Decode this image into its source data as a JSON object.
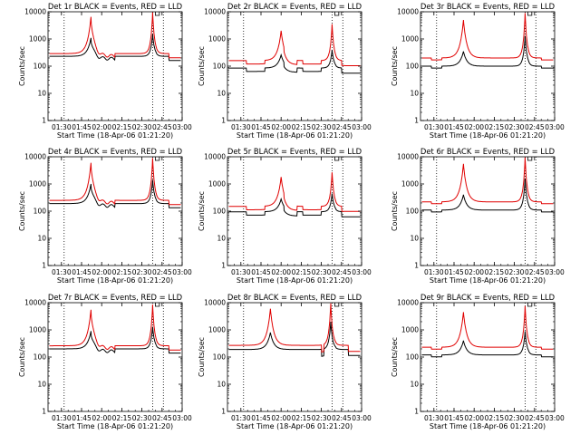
{
  "chart_data": [
    {
      "type": "line",
      "title": "Det 1r BLACK = Events, RED = LLD",
      "xlabel": "Start Time (18-Apr-06 01:21:20)",
      "ylabel": "Counts/sec",
      "ylim": [
        1,
        10000
      ],
      "log_y": true,
      "x_ticks": [
        "01:30",
        "01:45",
        "02:00",
        "02:15",
        "02:30",
        "02:45",
        "03:00"
      ],
      "y_ticks": [
        "1",
        "10",
        "100",
        "1000",
        "10000"
      ],
      "vlines": [
        "01:32",
        "02:38",
        "02:46"
      ],
      "series": [
        {
          "name": "Events",
          "color": "#000000",
          "profile": "A",
          "base": 230,
          "peak1": 1100,
          "peak2": 1500
        },
        {
          "name": "LLD",
          "color": "#e00000",
          "profile": "A",
          "base": 290,
          "peak1": 6500,
          "peak2": 9500
        }
      ]
    },
    {
      "type": "line",
      "title": "Det 2r BLACK = Events, RED = LLD",
      "xlabel": "Start Time (18-Apr-06 01:21:20)",
      "ylabel": "Counts/sec",
      "ylim": [
        1,
        10000
      ],
      "log_y": true,
      "x_ticks": [
        "01:30",
        "01:45",
        "02:00",
        "02:15",
        "02:30",
        "02:45",
        "03:00"
      ],
      "y_ticks": [
        "1",
        "10",
        "100",
        "1000",
        "10000"
      ],
      "vlines": [
        "01:32",
        "02:38",
        "02:46"
      ],
      "series": [
        {
          "name": "Events",
          "color": "#000000",
          "profile": "B",
          "base": 85,
          "peak1": 260,
          "peak2": 400
        },
        {
          "name": "LLD",
          "color": "#e00000",
          "profile": "B",
          "base": 160,
          "peak1": 2000,
          "peak2": 3500
        }
      ]
    },
    {
      "type": "line",
      "title": "Det 3r BLACK = Events, RED = LLD",
      "xlabel": "Start Time (18-Apr-06 01:21:20)",
      "ylabel": "Counts/sec",
      "ylim": [
        1,
        10000
      ],
      "log_y": true,
      "x_ticks": [
        "01:30",
        "01:45",
        "02:00",
        "02:15",
        "02:30",
        "02:45",
        "03:00"
      ],
      "y_ticks": [
        "1",
        "10",
        "100",
        "1000",
        "10000"
      ],
      "vlines": [
        "01:32",
        "02:38",
        "02:46"
      ],
      "series": [
        {
          "name": "Events",
          "color": "#000000",
          "profile": "C",
          "base": 100,
          "peak1": 350,
          "peak2": 1300
        },
        {
          "name": "LLD",
          "color": "#e00000",
          "profile": "C",
          "base": 200,
          "peak1": 5000,
          "peak2": 9000
        }
      ]
    },
    {
      "type": "line",
      "title": "Det 4r BLACK = Events, RED = LLD",
      "xlabel": "Start Time (18-Apr-06 01:21:20)",
      "ylabel": "Counts/sec",
      "ylim": [
        1,
        10000
      ],
      "log_y": true,
      "x_ticks": [
        "01:30",
        "01:45",
        "02:00",
        "02:15",
        "02:30",
        "02:45",
        "03:00"
      ],
      "y_ticks": [
        "1",
        "10",
        "100",
        "1000",
        "10000"
      ],
      "vlines": [
        "01:32",
        "02:38",
        "02:46"
      ],
      "series": [
        {
          "name": "Events",
          "color": "#000000",
          "profile": "A",
          "base": 190,
          "peak1": 1000,
          "peak2": 1400
        },
        {
          "name": "LLD",
          "color": "#e00000",
          "profile": "A",
          "base": 250,
          "peak1": 6000,
          "peak2": 9000
        }
      ]
    },
    {
      "type": "line",
      "title": "Det 5r BLACK = Events, RED = LLD",
      "xlabel": "Start Time (18-Apr-06 01:21:20)",
      "ylabel": "Counts/sec",
      "ylim": [
        1,
        10000
      ],
      "log_y": true,
      "x_ticks": [
        "01:30",
        "01:45",
        "02:00",
        "02:15",
        "02:30",
        "02:45",
        "03:00"
      ],
      "y_ticks": [
        "1",
        "10",
        "100",
        "1000",
        "10000"
      ],
      "vlines": [
        "01:32",
        "02:38",
        "02:46"
      ],
      "series": [
        {
          "name": "Events",
          "color": "#000000",
          "profile": "B",
          "base": 95,
          "peak1": 280,
          "peak2": 450
        },
        {
          "name": "LLD",
          "color": "#e00000",
          "profile": "B",
          "base": 150,
          "peak1": 1800,
          "peak2": 2700
        }
      ]
    },
    {
      "type": "line",
      "title": "Det 6r BLACK = Events, RED = LLD",
      "xlabel": "Start Time (18-Apr-06 01:21:20)",
      "ylabel": "Counts/sec",
      "ylim": [
        1,
        10000
      ],
      "log_y": true,
      "x_ticks": [
        "01:30",
        "01:45",
        "02:00",
        "02:15",
        "02:30",
        "02:45",
        "03:00"
      ],
      "y_ticks": [
        "1",
        "10",
        "100",
        "1000",
        "10000"
      ],
      "vlines": [
        "01:32",
        "02:38",
        "02:46"
      ],
      "series": [
        {
          "name": "Events",
          "color": "#000000",
          "profile": "C",
          "base": 110,
          "peak1": 400,
          "peak2": 1600
        },
        {
          "name": "LLD",
          "color": "#e00000",
          "profile": "C",
          "base": 220,
          "peak1": 5500,
          "peak2": 9500
        }
      ]
    },
    {
      "type": "line",
      "title": "Det 7r BLACK = Events, RED = LLD",
      "xlabel": "Start Time (18-Apr-06 01:21:20)",
      "ylabel": "Counts/sec",
      "ylim": [
        1,
        10000
      ],
      "log_y": true,
      "x_ticks": [
        "01:30",
        "01:45",
        "02:00",
        "02:15",
        "02:30",
        "02:45",
        "03:00"
      ],
      "y_ticks": [
        "1",
        "10",
        "100",
        "1000",
        "10000"
      ],
      "vlines": [
        "01:32",
        "02:38",
        "02:46"
      ],
      "series": [
        {
          "name": "Events",
          "color": "#000000",
          "profile": "A",
          "base": 200,
          "peak1": 900,
          "peak2": 1300
        },
        {
          "name": "LLD",
          "color": "#e00000",
          "profile": "A",
          "base": 260,
          "peak1": 5500,
          "peak2": 8500
        }
      ]
    },
    {
      "type": "line",
      "title": "Det 8r BLACK = Events, RED = LLD",
      "xlabel": "Start Time (18-Apr-06 01:21:20)",
      "ylabel": "Counts/sec",
      "ylim": [
        1,
        10000
      ],
      "log_y": true,
      "x_ticks": [
        "01:30",
        "01:45",
        "02:00",
        "02:15",
        "02:30",
        "02:45",
        "03:00"
      ],
      "y_ticks": [
        "1",
        "10",
        "100",
        "1000",
        "10000"
      ],
      "vlines": [
        "01:32",
        "02:38",
        "02:46"
      ],
      "series": [
        {
          "name": "Events",
          "color": "#000000",
          "profile": "D",
          "base": 190,
          "peak1": 800,
          "peak2": 2000
        },
        {
          "name": "LLD",
          "color": "#e00000",
          "profile": "D",
          "base": 270,
          "peak1": 6000,
          "peak2": 9500
        }
      ]
    },
    {
      "type": "line",
      "title": "Det 9r BLACK = Events, RED = LLD",
      "xlabel": "Start Time (18-Apr-06 01:21:20)",
      "ylabel": "Counts/sec",
      "ylim": [
        1,
        10000
      ],
      "log_y": true,
      "x_ticks": [
        "01:30",
        "01:45",
        "02:00",
        "02:15",
        "02:30",
        "02:45",
        "03:00"
      ],
      "y_ticks": [
        "1",
        "10",
        "100",
        "1000",
        "10000"
      ],
      "vlines": [
        "01:32",
        "02:38",
        "02:46"
      ],
      "series": [
        {
          "name": "Events",
          "color": "#000000",
          "profile": "C",
          "base": 120,
          "peak1": 400,
          "peak2": 900
        },
        {
          "name": "LLD",
          "color": "#e00000",
          "profile": "C",
          "base": 230,
          "peak1": 4500,
          "peak2": 7500
        }
      ]
    }
  ]
}
